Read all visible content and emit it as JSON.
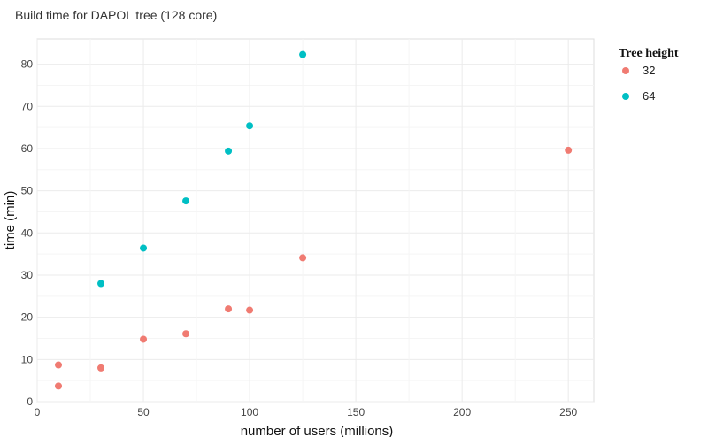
{
  "chart_data": {
    "type": "scatter",
    "title": "Build time for DAPOL tree (128 core)",
    "xlabel": "number of users (millions)",
    "ylabel": "time (min)",
    "xlim": [
      0,
      262
    ],
    "ylim": [
      0,
      86
    ],
    "xticks": [
      0,
      50,
      100,
      150,
      200,
      250
    ],
    "yticks": [
      0,
      10,
      20,
      30,
      40,
      50,
      60,
      70,
      80
    ],
    "grid": true,
    "legend_title": "Tree height",
    "legend_position": "right",
    "series": [
      {
        "name": "32",
        "color": "#F07B72",
        "points": [
          {
            "x": 10,
            "y": 8.7
          },
          {
            "x": 10,
            "y": 3.7
          },
          {
            "x": 30,
            "y": 8.0
          },
          {
            "x": 50,
            "y": 14.8
          },
          {
            "x": 70,
            "y": 16.1
          },
          {
            "x": 90,
            "y": 22.0
          },
          {
            "x": 100,
            "y": 21.7
          },
          {
            "x": 125,
            "y": 34.1
          },
          {
            "x": 250,
            "y": 59.6
          }
        ]
      },
      {
        "name": "64",
        "color": "#00BFC4",
        "points": [
          {
            "x": 30,
            "y": 28.0
          },
          {
            "x": 50,
            "y": 36.4
          },
          {
            "x": 70,
            "y": 47.6
          },
          {
            "x": 90,
            "y": 59.4
          },
          {
            "x": 100,
            "y": 65.4
          },
          {
            "x": 125,
            "y": 82.3
          }
        ]
      }
    ]
  }
}
